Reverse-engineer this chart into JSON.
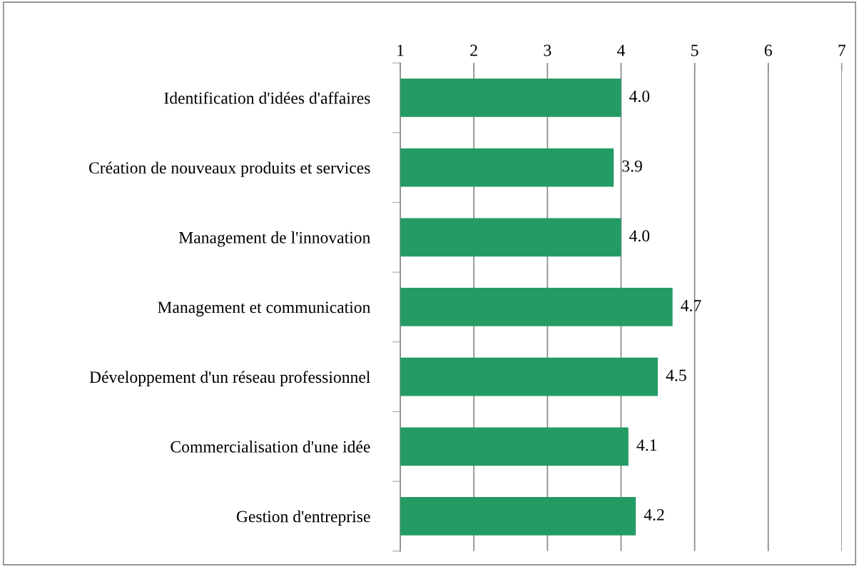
{
  "chart_data": {
    "type": "bar",
    "orientation": "horizontal",
    "categories": [
      "Identification d'idées d'affaires",
      "Création de nouveaux produits et services",
      "Management de l'innovation",
      "Management et communication",
      "Développement d'un réseau professionnel",
      "Commercialisation d'une idée",
      "Gestion d'entreprise"
    ],
    "values": [
      4.0,
      3.9,
      4.0,
      4.7,
      4.5,
      4.1,
      4.2
    ],
    "value_labels": [
      "4.0",
      "3.9",
      "4.0",
      "4.7",
      "4.5",
      "4.1",
      "4.2"
    ],
    "color": "#259b64",
    "xlim": [
      1,
      7
    ],
    "xticks": [
      1,
      2,
      3,
      4,
      5,
      6,
      7
    ],
    "grid": "x",
    "legend": false
  }
}
